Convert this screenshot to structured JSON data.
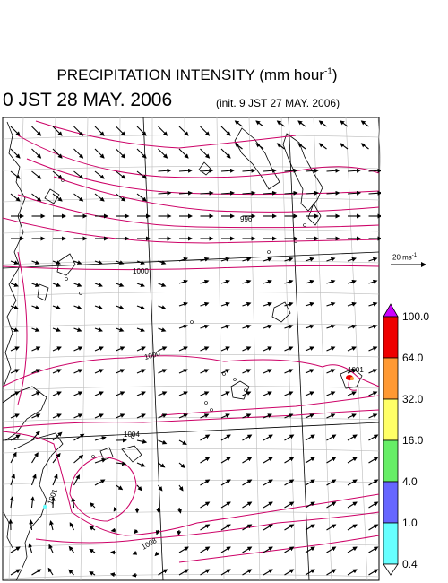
{
  "title": {
    "text": "PRECIPITATION INTENSITY (mm hour",
    "exponent": "-1",
    "close": ")"
  },
  "valid_time": "0 JST 28 MAY. 2006",
  "init_time": "(init. 9 JST 27 MAY. 2006)",
  "wind_scale": {
    "value": "20 ms",
    "exponent": "-1"
  },
  "colorbar": {
    "levels": [
      "100.0",
      "64.0",
      "32.0",
      "16.0",
      "4.0",
      "1.0",
      "0.4"
    ],
    "colors": [
      "#cc00ff",
      "#ee0000",
      "#ff9933",
      "#ffff66",
      "#66ee66",
      "#6666ff",
      "#66ffff",
      "#ffffff"
    ]
  },
  "isobar_labels": [
    "996",
    "1000",
    "1000",
    "1001",
    "1004",
    "1008",
    "1001"
  ],
  "map": {
    "contour_color": "#cc0066",
    "grid_color": "#bbbbbb",
    "coast_color": "#000000"
  }
}
